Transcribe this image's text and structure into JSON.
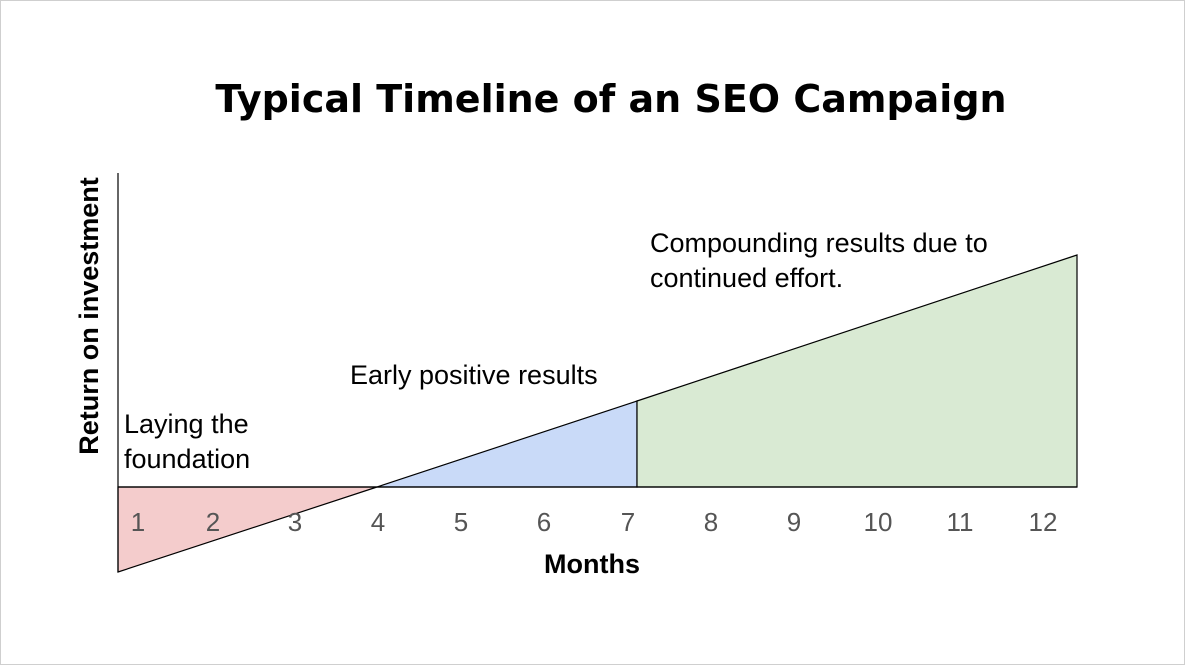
{
  "chart_data": {
    "type": "area",
    "title": "Typical Timeline of an SEO Campaign",
    "xlabel": "Months",
    "ylabel": "Return on investment",
    "x_ticks": [
      "1",
      "2",
      "3",
      "4",
      "5",
      "6",
      "7",
      "8",
      "9",
      "10",
      "11",
      "12"
    ],
    "phases": [
      {
        "label_lines": [
          "Laying the",
          "foundation"
        ],
        "color": "#f4cccc"
      },
      {
        "label_lines": [
          "Early positive results"
        ],
        "color": "#c9daf8"
      },
      {
        "label_lines": [
          "Compounding results due to",
          "continued effort."
        ],
        "color": "#d9ead3"
      }
    ]
  }
}
